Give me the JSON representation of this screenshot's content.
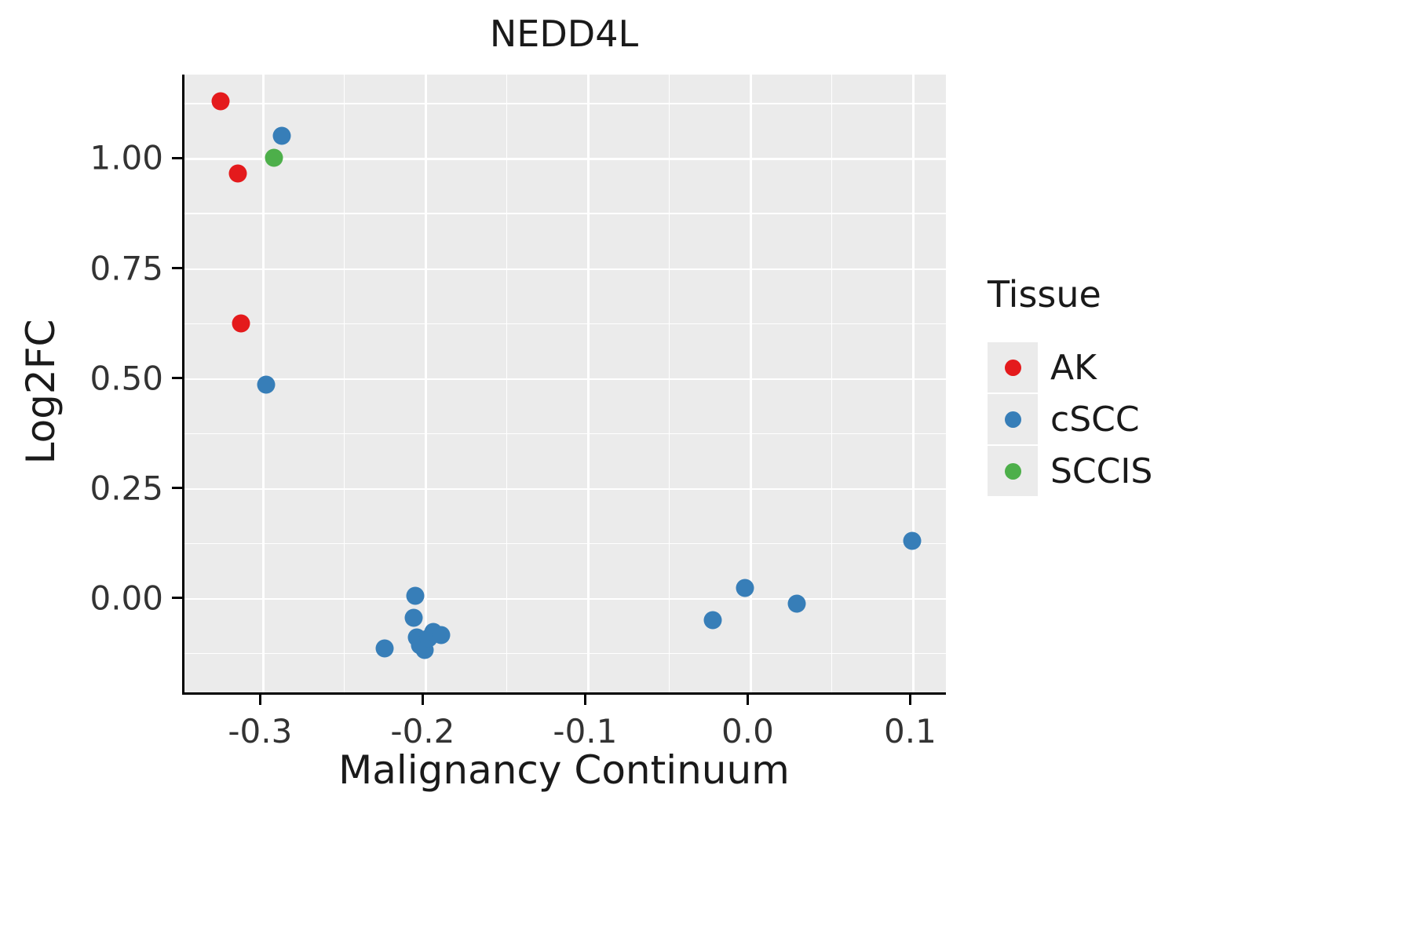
{
  "chart_data": {
    "type": "scatter",
    "title": "NEDD4L",
    "xlabel": "Malignancy Continuum",
    "ylabel": "Log2FC",
    "xlim": [
      -0.348,
      0.122
    ],
    "ylim": [
      -0.22,
      1.19
    ],
    "x_ticks": [
      -0.3,
      -0.2,
      -0.1,
      0.0,
      0.1
    ],
    "x_tick_labels": [
      "-0.3",
      "-0.2",
      "-0.1",
      "0.0",
      "0.1"
    ],
    "y_ticks": [
      0.0,
      0.25,
      0.5,
      0.75,
      1.0
    ],
    "y_tick_labels": [
      "0.00",
      "0.25",
      "0.50",
      "0.75",
      "1.00"
    ],
    "grid": true,
    "panel_bg": "#EBEBEB",
    "grid_color": "#FFFFFF",
    "legend": {
      "title": "Tissue",
      "position": "right",
      "entries": [
        {
          "label": "AK",
          "color": "#E41A1C"
        },
        {
          "label": "cSCC",
          "color": "#377EB8"
        },
        {
          "label": "SCCIS",
          "color": "#4DAF4A"
        }
      ]
    },
    "series": [
      {
        "name": "AK",
        "color": "#E41A1C",
        "points": [
          [
            -0.326,
            1.13
          ],
          [
            -0.315,
            0.965
          ],
          [
            -0.313,
            0.625
          ]
        ]
      },
      {
        "name": "cSCC",
        "color": "#377EB8",
        "points": [
          [
            -0.288,
            1.05
          ],
          [
            -0.298,
            0.485
          ],
          [
            -0.225,
            -0.115
          ],
          [
            -0.206,
            0.005
          ],
          [
            -0.207,
            -0.045
          ],
          [
            -0.205,
            -0.09
          ],
          [
            -0.203,
            -0.108
          ],
          [
            -0.2,
            -0.118
          ],
          [
            -0.198,
            -0.092
          ],
          [
            -0.195,
            -0.078
          ],
          [
            -0.19,
            -0.085
          ],
          [
            -0.023,
            -0.05
          ],
          [
            -0.003,
            0.022
          ],
          [
            0.029,
            -0.013
          ],
          [
            0.1,
            0.13
          ]
        ]
      },
      {
        "name": "SCCIS",
        "color": "#4DAF4A",
        "points": [
          [
            -0.293,
            1.0
          ]
        ]
      }
    ]
  }
}
